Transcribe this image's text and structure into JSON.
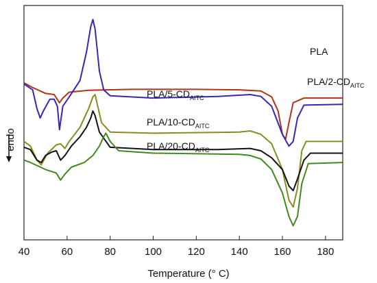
{
  "chart_data": {
    "type": "line",
    "title": "",
    "xlabel": "Temperature (° C)",
    "ylabel": "endo",
    "xlim": [
      40,
      188
    ],
    "x_ticks": [
      40,
      60,
      80,
      100,
      120,
      140,
      160,
      180
    ],
    "x_tick_labels": [
      "40",
      "60",
      "80",
      "100",
      "120",
      "140",
      "160",
      "180"
    ],
    "y_ticks": [],
    "grid": false,
    "series": [
      {
        "name": "PLA",
        "label_main": "PLA",
        "label_sub": "",
        "color": "#b23318",
        "points": [
          [
            40,
            0.67
          ],
          [
            44,
            0.65
          ],
          [
            50,
            0.625
          ],
          [
            54,
            0.62
          ],
          [
            56.5,
            0.585
          ],
          [
            58,
            0.605
          ],
          [
            61,
            0.63
          ],
          [
            70,
            0.638
          ],
          [
            90,
            0.642
          ],
          [
            120,
            0.642
          ],
          [
            140,
            0.64
          ],
          [
            150,
            0.635
          ],
          [
            155,
            0.61
          ],
          [
            158,
            0.55
          ],
          [
            160,
            0.45
          ],
          [
            161.5,
            0.43
          ],
          [
            163,
            0.5
          ],
          [
            165,
            0.585
          ],
          [
            170,
            0.605
          ],
          [
            188,
            0.605
          ]
        ]
      },
      {
        "name": "PLA/2-CD",
        "label_main": "PLA/2-CD",
        "label_sub": "AITC",
        "color": "#3b22b8",
        "points": [
          [
            40,
            0.665
          ],
          [
            44,
            0.64
          ],
          [
            46,
            0.56
          ],
          [
            47.5,
            0.52
          ],
          [
            49,
            0.55
          ],
          [
            52,
            0.6
          ],
          [
            54,
            0.6
          ],
          [
            55.5,
            0.57
          ],
          [
            56.5,
            0.47
          ],
          [
            58,
            0.57
          ],
          [
            61,
            0.61
          ],
          [
            66,
            0.68
          ],
          [
            69,
            0.8
          ],
          [
            71,
            0.91
          ],
          [
            72,
            0.94
          ],
          [
            73,
            0.9
          ],
          [
            75,
            0.72
          ],
          [
            77,
            0.64
          ],
          [
            80,
            0.615
          ],
          [
            100,
            0.605
          ],
          [
            130,
            0.612
          ],
          [
            145,
            0.62
          ],
          [
            150,
            0.612
          ],
          [
            155,
            0.57
          ],
          [
            160,
            0.45
          ],
          [
            163,
            0.4
          ],
          [
            165,
            0.42
          ],
          [
            167,
            0.52
          ],
          [
            170,
            0.575
          ],
          [
            188,
            0.578
          ]
        ]
      },
      {
        "name": "PLA/5-CD",
        "label_main": "PLA/5-CD",
        "label_sub": "AITC",
        "color": "#8a8a1e",
        "points": [
          [
            40,
            0.42
          ],
          [
            43,
            0.4
          ],
          [
            46,
            0.34
          ],
          [
            48,
            0.32
          ],
          [
            51,
            0.37
          ],
          [
            55,
            0.405
          ],
          [
            57,
            0.41
          ],
          [
            59,
            0.39
          ],
          [
            61,
            0.42
          ],
          [
            66,
            0.48
          ],
          [
            70,
            0.56
          ],
          [
            72,
            0.61
          ],
          [
            73,
            0.62
          ],
          [
            74,
            0.58
          ],
          [
            76,
            0.5
          ],
          [
            80,
            0.46
          ],
          [
            100,
            0.455
          ],
          [
            140,
            0.46
          ],
          [
            145,
            0.465
          ],
          [
            150,
            0.45
          ],
          [
            155,
            0.41
          ],
          [
            160,
            0.3
          ],
          [
            163,
            0.17
          ],
          [
            165,
            0.14
          ],
          [
            167,
            0.22
          ],
          [
            169,
            0.38
          ],
          [
            171,
            0.42
          ],
          [
            188,
            0.42
          ]
        ]
      },
      {
        "name": "PLA/10-CD",
        "label_main": "PLA/10-CD",
        "label_sub": "AITC",
        "color": "#111111",
        "points": [
          [
            40,
            0.395
          ],
          [
            43,
            0.385
          ],
          [
            46,
            0.34
          ],
          [
            48,
            0.33
          ],
          [
            50,
            0.36
          ],
          [
            53,
            0.375
          ],
          [
            55,
            0.38
          ],
          [
            57,
            0.34
          ],
          [
            59,
            0.36
          ],
          [
            62,
            0.4
          ],
          [
            66,
            0.44
          ],
          [
            69,
            0.48
          ],
          [
            71,
            0.52
          ],
          [
            72,
            0.55
          ],
          [
            73,
            0.53
          ],
          [
            75,
            0.46
          ],
          [
            80,
            0.395
          ],
          [
            100,
            0.385
          ],
          [
            130,
            0.385
          ],
          [
            145,
            0.39
          ],
          [
            150,
            0.38
          ],
          [
            155,
            0.35
          ],
          [
            160,
            0.3
          ],
          [
            163,
            0.23
          ],
          [
            165,
            0.21
          ],
          [
            167,
            0.26
          ],
          [
            170,
            0.34
          ],
          [
            173,
            0.37
          ],
          [
            188,
            0.37
          ]
        ]
      },
      {
        "name": "PLA/20-CD",
        "label_main": "PLA/20-CD",
        "label_sub": "AITC",
        "color": "#3e8a1e",
        "points": [
          [
            40,
            0.34
          ],
          [
            43,
            0.33
          ],
          [
            50,
            0.3
          ],
          [
            55,
            0.285
          ],
          [
            57,
            0.255
          ],
          [
            59,
            0.28
          ],
          [
            62,
            0.31
          ],
          [
            68,
            0.33
          ],
          [
            72,
            0.36
          ],
          [
            75,
            0.4
          ],
          [
            77,
            0.44
          ],
          [
            78,
            0.455
          ],
          [
            80,
            0.42
          ],
          [
            84,
            0.38
          ],
          [
            100,
            0.37
          ],
          [
            140,
            0.365
          ],
          [
            145,
            0.36
          ],
          [
            150,
            0.345
          ],
          [
            155,
            0.3
          ],
          [
            160,
            0.2
          ],
          [
            163,
            0.1
          ],
          [
            165,
            0.06
          ],
          [
            167,
            0.1
          ],
          [
            169,
            0.24
          ],
          [
            172,
            0.325
          ],
          [
            188,
            0.33
          ]
        ]
      }
    ]
  }
}
